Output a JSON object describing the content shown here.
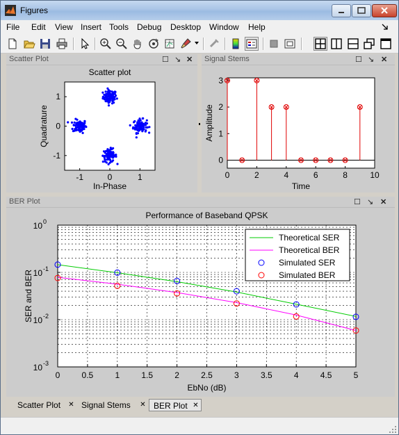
{
  "window": {
    "title": "Figures"
  },
  "menu": [
    "File",
    "Edit",
    "View",
    "Insert",
    "Tools",
    "Debug",
    "Desktop",
    "Window",
    "Help"
  ],
  "menu_arrow_icon": "dock-arrow-icon",
  "toolbar_icons": [
    "new-figure-icon",
    "open-file-icon",
    "save-icon",
    "print-icon",
    "select-arrow-icon",
    "zoom-in-icon",
    "zoom-out-icon",
    "pan-hand-icon",
    "rotate-3d-icon",
    "data-cursor-icon",
    "brush-icon",
    "brush-dropdown-icon",
    "link-plot-icon",
    "colorbar-icon",
    "legend-icon",
    "hide-plot-tools-icon",
    "show-plot-tools-icon",
    "tile-layout-icon",
    "left-right-layout-icon",
    "top-bottom-layout-icon",
    "float-layout-icon",
    "single-layout-icon"
  ],
  "panels": {
    "scatter": {
      "title": "Scatter Plot"
    },
    "stems": {
      "title": "Signal Stems"
    },
    "ber": {
      "title": "BER Plot"
    }
  },
  "tabs": [
    {
      "label": "Scatter Plot",
      "active": false
    },
    {
      "label": "Signal Stems",
      "active": false
    },
    {
      "label": "BER Plot",
      "active": true
    }
  ],
  "chart_data": [
    {
      "type": "scatter",
      "title": "Scatter plot",
      "xlabel": "In-Phase",
      "ylabel": "Quadrature",
      "xlim": [
        -1.5,
        1.5
      ],
      "ylim": [
        -1.5,
        1.5
      ],
      "x_ticks": [
        -1,
        0,
        1
      ],
      "y_ticks": [
        -1,
        0,
        1
      ],
      "color": "#0000ff",
      "clusters": [
        {
          "center": [
            0,
            1
          ],
          "spread": 0.15
        },
        {
          "center": [
            -1,
            0
          ],
          "spread": 0.15
        },
        {
          "center": [
            1,
            0
          ],
          "spread": 0.15
        },
        {
          "center": [
            0,
            -1
          ],
          "spread": 0.15
        }
      ]
    },
    {
      "type": "stem",
      "title": "",
      "xlabel": "Time",
      "ylabel": "Amplitude",
      "xlim": [
        0,
        10
      ],
      "ylim": [
        -0.3,
        3.1
      ],
      "x_ticks": [
        0,
        2,
        4,
        6,
        8,
        10
      ],
      "y_ticks": [
        0,
        1,
        2,
        3
      ],
      "x": [
        0,
        1,
        2,
        3,
        4,
        5,
        6,
        7,
        8,
        9
      ],
      "y": [
        3,
        0,
        3,
        2,
        2,
        0,
        0,
        0,
        0,
        2
      ],
      "color": "#e00000"
    },
    {
      "type": "line",
      "title": "Performance of Baseband QPSK",
      "xlabel": "EbNo (dB)",
      "ylabel": "SER and BER",
      "xlim": [
        0,
        5
      ],
      "ylim": [
        0.001,
        1
      ],
      "yscale": "log",
      "grid": true,
      "x_ticks": [
        "0",
        "0.5",
        "1",
        "1.5",
        "2",
        "2.5",
        "3",
        "3.5",
        "4",
        "4.5",
        "5"
      ],
      "y_tick_labels": [
        {
          "base": "10",
          "exp": "0",
          "value": 1
        },
        {
          "base": "10",
          "exp": "-1",
          "value": 0.1
        },
        {
          "base": "10",
          "exp": "-2",
          "value": 0.01
        },
        {
          "base": "10",
          "exp": "-3",
          "value": 0.001
        }
      ],
      "legend_position": "top-right",
      "x": [
        0,
        1,
        2,
        3,
        4,
        5
      ],
      "series": [
        {
          "name": "Theoretical SER",
          "style": "line",
          "color": "#00cc00",
          "values": [
            0.1456,
            0.0984,
            0.0635,
            0.0384,
            0.0212,
            0.0117
          ]
        },
        {
          "name": "Theoretical BER",
          "style": "line",
          "color": "#ff00ff",
          "values": [
            0.0786,
            0.0563,
            0.0375,
            0.0229,
            0.0125,
            0.0059
          ]
        },
        {
          "name": "Simulated SER",
          "style": "marker",
          "color": "#0000ff",
          "values": [
            0.146,
            0.099,
            0.066,
            0.04,
            0.021,
            0.0115
          ]
        },
        {
          "name": "Simulated BER",
          "style": "marker",
          "color": "#ff0000",
          "values": [
            0.076,
            0.052,
            0.036,
            0.022,
            0.0117,
            0.0059
          ]
        }
      ]
    }
  ]
}
